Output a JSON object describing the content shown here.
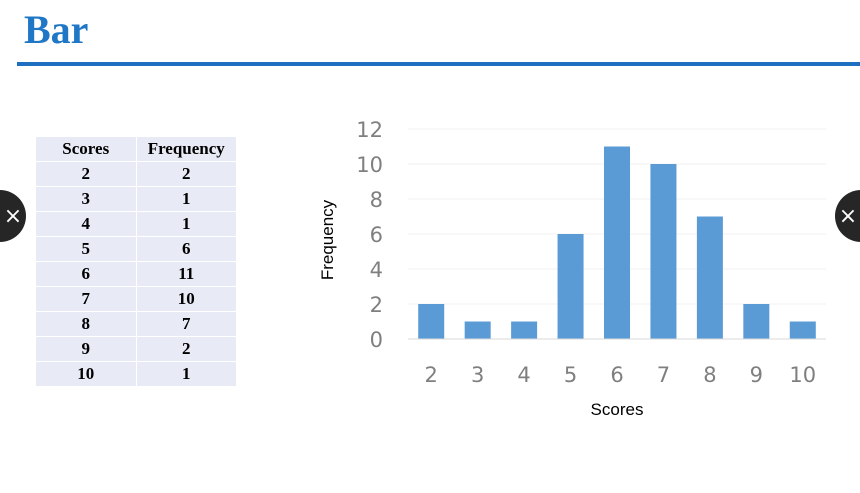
{
  "slide": {
    "title": "Bar"
  },
  "table": {
    "headers": [
      "Scores",
      "Frequency"
    ],
    "rows": [
      [
        "2",
        "2"
      ],
      [
        "3",
        "1"
      ],
      [
        "4",
        "1"
      ],
      [
        "5",
        "6"
      ],
      [
        "6",
        "11"
      ],
      [
        "7",
        "10"
      ],
      [
        "8",
        "7"
      ],
      [
        "9",
        "2"
      ],
      [
        "10",
        "1"
      ]
    ]
  },
  "nav": {
    "prev_icon": "close-icon",
    "next_icon": "close-icon",
    "prev_glyph": "×",
    "next_glyph": "×"
  },
  "chart_data": {
    "type": "bar",
    "categories": [
      "2",
      "3",
      "4",
      "5",
      "6",
      "7",
      "8",
      "9",
      "10"
    ],
    "values": [
      2,
      1,
      1,
      6,
      11,
      10,
      7,
      2,
      1
    ],
    "xlabel": "Scores",
    "ylabel": "Frequency",
    "ylim": [
      0,
      12
    ],
    "yticks": [
      0,
      2,
      4,
      6,
      8,
      10,
      12
    ],
    "grid": true,
    "bar_color": "#5b9bd5",
    "grid_color": "#f2f2f2",
    "axis_color": "#d9d9d9"
  }
}
